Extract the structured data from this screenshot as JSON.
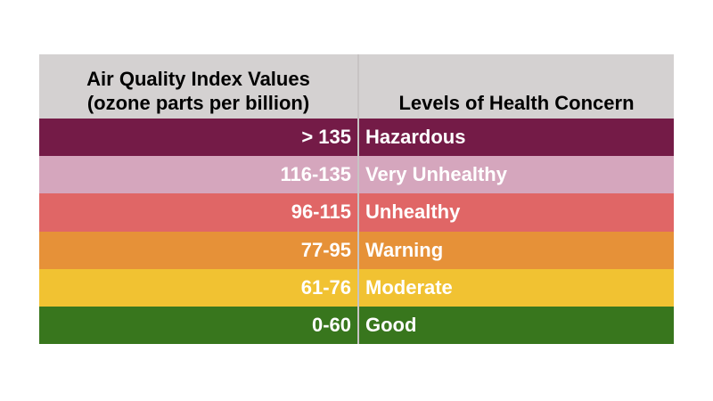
{
  "table": {
    "header": {
      "col1_line1": "Air Quality Index Values",
      "col1_line2": "(ozone parts per billion)",
      "col2": "Levels of Health Concern",
      "bg": "#d4d1d1",
      "text_color": "#000000"
    },
    "divider_color": "#c7c3c3",
    "rows": [
      {
        "range": "> 135",
        "level": "Hazardous",
        "color": "#741b47",
        "text_color": "#ffffff"
      },
      {
        "range": "116-135",
        "level": "Very Unhealthy",
        "color": "#d5a6bd",
        "text_color": "#ffffff"
      },
      {
        "range": "96-115",
        "level": "Unhealthy",
        "color": "#e06666",
        "text_color": "#ffffff"
      },
      {
        "range": "77-95",
        "level": "Warning",
        "color": "#e69138",
        "text_color": "#ffffff"
      },
      {
        "range": "61-76",
        "level": "Moderate",
        "color": "#f1c232",
        "text_color": "#ffffff"
      },
      {
        "range": "0-60",
        "level": "Good",
        "color": "#38761d",
        "text_color": "#ffffff"
      }
    ]
  },
  "chart_data": {
    "type": "table",
    "columns": [
      "Air Quality Index Values (ozone parts per billion)",
      "Levels of Health Concern"
    ],
    "rows": [
      [
        "> 135",
        "Hazardous"
      ],
      [
        "116-135",
        "Very Unhealthy"
      ],
      [
        "96-115",
        "Unhealthy"
      ],
      [
        "77-95",
        "Warning"
      ],
      [
        "61-76",
        "Moderate"
      ],
      [
        "0-60",
        "Good"
      ]
    ],
    "row_colors": [
      "#741b47",
      "#d5a6bd",
      "#e06666",
      "#e69138",
      "#f1c232",
      "#38761d"
    ],
    "header_bg": "#d4d1d1",
    "notes": "Color-coded air quality index legend table; numeric ranges right-aligned, health concern labels left-aligned, white bold text on colored rows"
  }
}
